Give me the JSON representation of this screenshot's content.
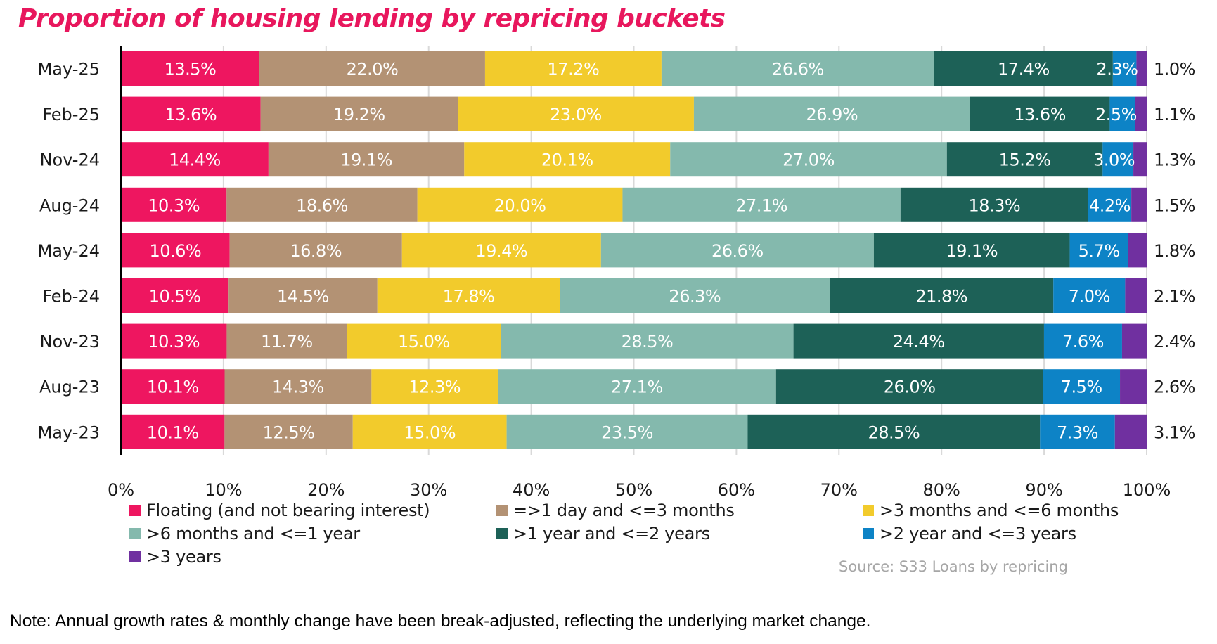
{
  "chart_data": {
    "type": "bar",
    "orientation": "horizontal",
    "stacked": true,
    "title": "Proportion of housing lending by repricing buckets",
    "xlabel": "",
    "ylabel": "",
    "xlim": [
      0,
      100
    ],
    "x_ticks": [
      "0%",
      "10%",
      "20%",
      "30%",
      "40%",
      "50%",
      "60%",
      "70%",
      "80%",
      "90%",
      "100%"
    ],
    "grid": "vertical",
    "legend_position": "bottom",
    "categories": [
      "May-25",
      "Feb-25",
      "Nov-24",
      "Aug-24",
      "May-24",
      "Feb-24",
      "Nov-23",
      "Aug-23",
      "May-23"
    ],
    "series": [
      {
        "name": "Floating (and not bearing interest)",
        "color": "#EE1660",
        "values": [
          13.5,
          13.6,
          14.4,
          10.3,
          10.6,
          10.5,
          10.3,
          10.1,
          10.1
        ],
        "labels": [
          "13.5%",
          "13.6%",
          "14.4%",
          "10.3%",
          "10.6%",
          "10.5%",
          "10.3%",
          "10.1%",
          "10.1%"
        ]
      },
      {
        "name": "=>1 day and <=3 months",
        "color": "#B39274",
        "values": [
          22.0,
          19.2,
          19.1,
          18.6,
          16.8,
          14.5,
          11.7,
          14.3,
          12.5
        ],
        "labels": [
          "22.0%",
          "19.2%",
          "19.1%",
          "18.6%",
          "16.8%",
          "14.5%",
          "11.7%",
          "14.3%",
          "12.5%"
        ]
      },
      {
        "name": ">3 months and <=6 months",
        "color": "#F2CB2C",
        "values": [
          17.2,
          23.0,
          20.1,
          20.0,
          19.4,
          17.8,
          15.0,
          12.3,
          15.0
        ],
        "labels": [
          "17.2%",
          "23.0%",
          "20.1%",
          "20.0%",
          "19.4%",
          "17.8%",
          "15.0%",
          "12.3%",
          "15.0%"
        ]
      },
      {
        "name": ">6 months and <=1 year",
        "color": "#84B9AD",
        "values": [
          26.6,
          26.9,
          27.0,
          27.1,
          26.6,
          26.3,
          28.5,
          27.1,
          23.5
        ],
        "labels": [
          "26.6%",
          "26.9%",
          "27.0%",
          "27.1%",
          "26.6%",
          "26.3%",
          "28.5%",
          "27.1%",
          "23.5%"
        ]
      },
      {
        "name": ">1 year and <=2 years",
        "color": "#1D6157",
        "values": [
          17.4,
          13.6,
          15.2,
          18.3,
          19.1,
          21.8,
          24.4,
          26.0,
          28.5
        ],
        "labels": [
          "17.4%",
          "13.6%",
          "15.2%",
          "18.3%",
          "19.1%",
          "21.8%",
          "24.4%",
          "26.0%",
          "28.5%"
        ]
      },
      {
        "name": ">2 year and <=3 years",
        "color": "#0D83C6",
        "values": [
          2.3,
          2.5,
          3.0,
          4.2,
          5.7,
          7.0,
          7.6,
          7.5,
          7.3
        ],
        "labels": [
          "2.3%",
          "2.5%",
          "3.0%",
          "4.2%",
          "5.7%",
          "7.0%",
          "7.6%",
          "7.5%",
          "7.3%"
        ]
      },
      {
        "name": ">3 years",
        "color": "#7030A0",
        "values": [
          1.0,
          1.1,
          1.3,
          1.5,
          1.8,
          2.1,
          2.4,
          2.6,
          3.1
        ],
        "labels": [
          "1.0%",
          "1.1%",
          "1.3%",
          "1.5%",
          "1.8%",
          "2.1%",
          "2.4%",
          "2.6%",
          "3.1%"
        ],
        "label_position": "outside-right"
      }
    ]
  },
  "legend": [
    {
      "label": "Floating (and not bearing interest)",
      "color": "#EE1660"
    },
    {
      "label": "=>1 day and <=3 months",
      "color": "#B39274"
    },
    {
      "label": ">3 months and <=6 months",
      "color": "#F2CB2C"
    },
    {
      "label": ">6 months and <=1 year",
      "color": "#84B9AD"
    },
    {
      "label": ">1 year and <=2 years",
      "color": "#1D6157"
    },
    {
      "label": ">2 year and <=3 years",
      "color": "#0D83C6"
    },
    {
      "label": ">3 years",
      "color": "#7030A0"
    }
  ],
  "source": "Source: S33 Loans by repricing",
  "note": "Note: Annual growth rates & monthly change have been break-adjusted, reflecting the underlying market change.",
  "colors": {
    "title": "#E8175D",
    "gridline": "#d9d9d9",
    "source": "#a6a6a6"
  }
}
